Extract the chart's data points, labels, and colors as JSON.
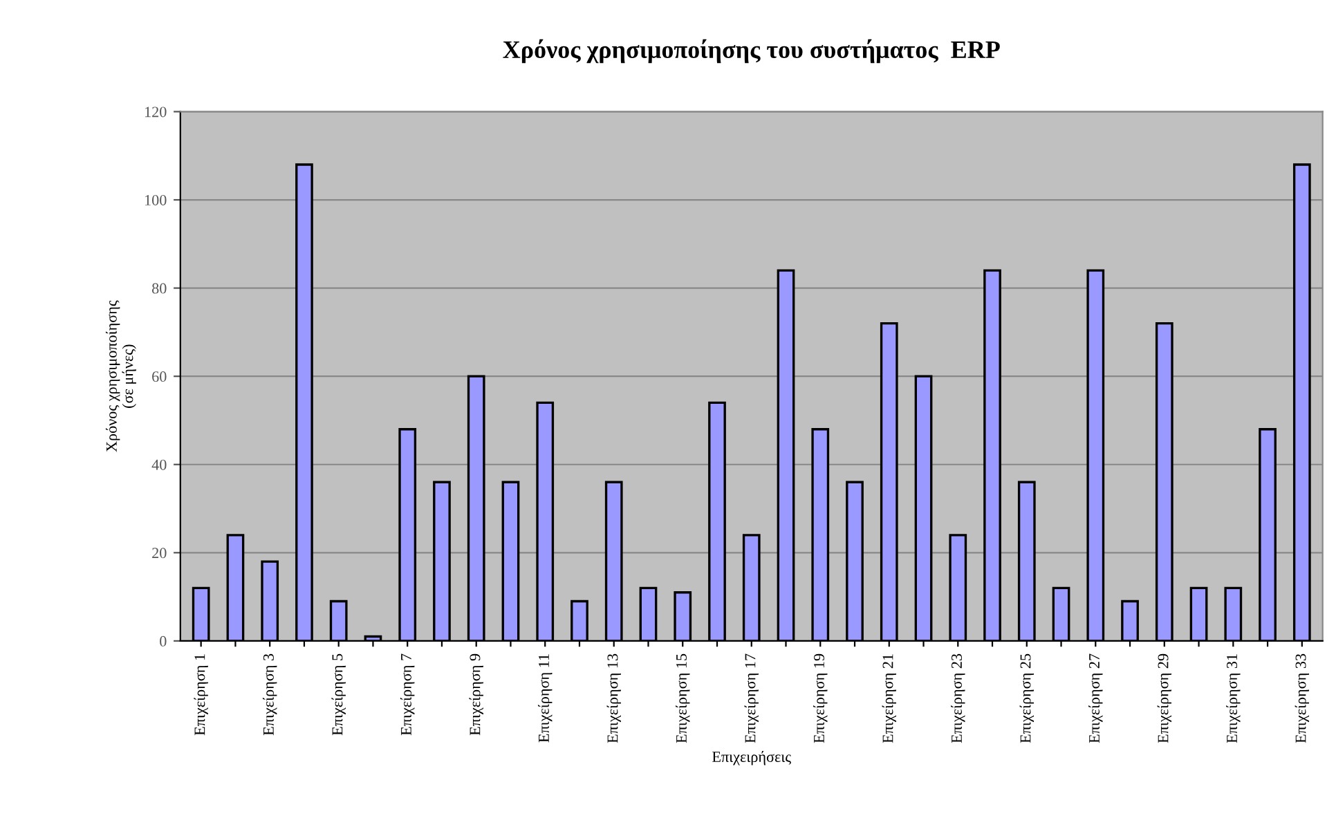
{
  "chart_data": {
    "type": "bar",
    "title": "Χρόνος χρησιμοποίησης του συστήματος  ERP",
    "xlabel": "Επιχειρήσεις",
    "ylabel": "Χρόνος χρησιμοποίησης\n(σε μήνες)",
    "categories": [
      "Επιχείρηση 1",
      null,
      "Επιχείρηση 3",
      null,
      "Επιχείρηση 5",
      null,
      "Επιχείρηση 7",
      null,
      "Επιχείρηση 9",
      null,
      "Επιχείρηση 11",
      null,
      "Επιχείρηση 13",
      null,
      "Επιχείρηση 15",
      null,
      "Επιχείρηση 17",
      null,
      "Επιχείρηση 19",
      null,
      "Επιχείρηση 21",
      null,
      "Επιχείρηση 23",
      null,
      "Επιχείρηση 25",
      null,
      "Επιχείρηση 27",
      null,
      "Επιχείρηση 29",
      null,
      "Επιχείρηση 31",
      null,
      "Επιχείρηση 33"
    ],
    "values": [
      12,
      24,
      18,
      108,
      9,
      1,
      48,
      36,
      60,
      36,
      54,
      9,
      36,
      12,
      11,
      54,
      24,
      84,
      48,
      36,
      72,
      60,
      24,
      84,
      36,
      12,
      84,
      9,
      72,
      12,
      12,
      48,
      108
    ],
    "color": "#9999ff",
    "ylim": [
      0,
      120
    ],
    "yticks": [
      0,
      20,
      40,
      60,
      80,
      100,
      120
    ],
    "grid": "y",
    "legend": false
  }
}
